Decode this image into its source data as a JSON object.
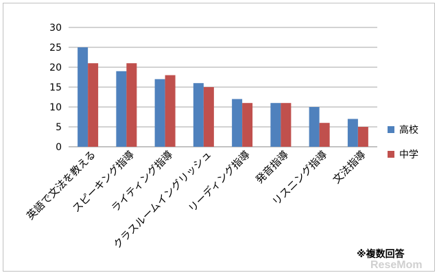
{
  "chart_data": {
    "type": "bar",
    "categories": [
      "英語で文法を教える",
      "スピーキング指導",
      "ライティング指導",
      "クラスルームイングリッシュ",
      "リーディング指導",
      "発音指導",
      "リスニング指導",
      "文法指導"
    ],
    "series": [
      {
        "name": "高校",
        "values": [
          25,
          19,
          17,
          16,
          12,
          11,
          10,
          7
        ],
        "color": "#4f81bd"
      },
      {
        "name": "中学",
        "values": [
          21,
          21,
          18,
          15,
          11,
          11,
          6,
          5
        ],
        "color": "#c0504d"
      }
    ],
    "yticks": [
      0,
      5,
      10,
      15,
      20,
      25,
      30
    ],
    "ylim": [
      0,
      30
    ],
    "grid": true,
    "legend_position": "right"
  },
  "note": "※複数回答",
  "watermark": "ReseMom"
}
